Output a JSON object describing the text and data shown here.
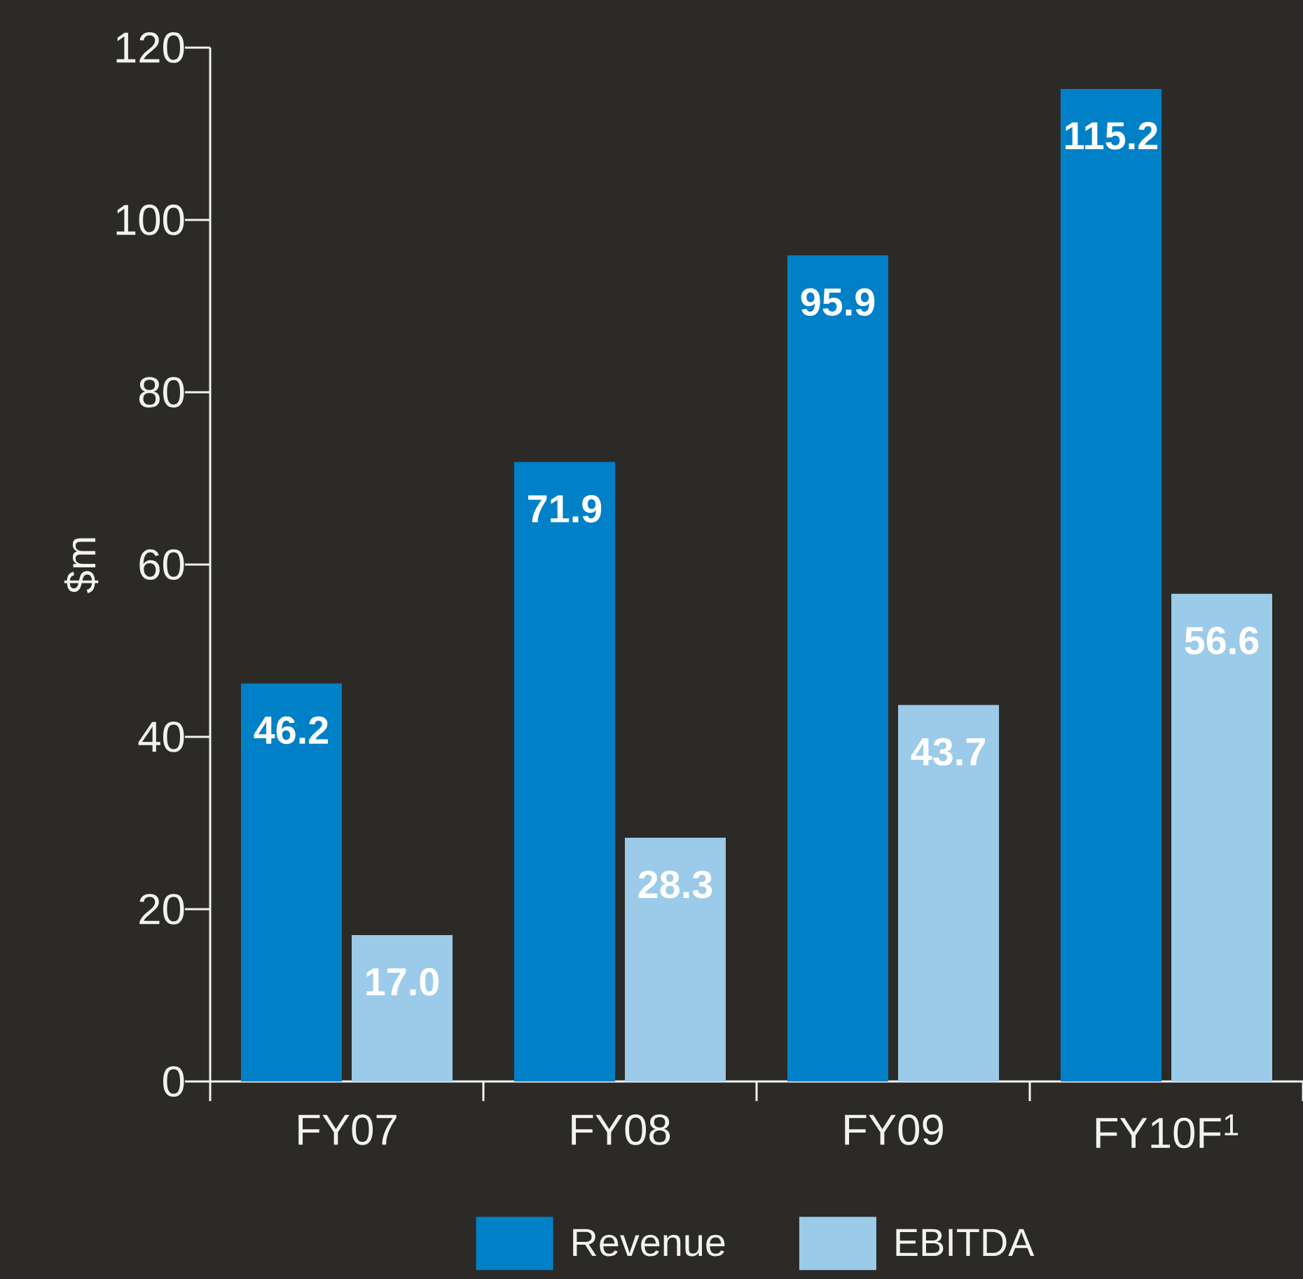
{
  "chart_data": {
    "type": "bar",
    "ylabel": "$m",
    "categories": [
      "FY07",
      "FY08",
      "FY09",
      "FY10F$^{1}$"
    ],
    "series": [
      {
        "name": "Revenue",
        "color": "#0080c6",
        "values": [
          46.2,
          71.9,
          95.9,
          115.2
        ],
        "value_labels": [
          "46.2",
          "71.9",
          "95.9",
          "115.2"
        ]
      },
      {
        "name": "EBITDA",
        "color": "#9bcbe8",
        "values": [
          17,
          28.3,
          43.7,
          56.6
        ],
        "value_labels": [
          "17.0",
          "28.3",
          "43.7",
          "56.6"
        ]
      }
    ],
    "ylim": [
      0,
      120
    ],
    "yticks": [
      0,
      20,
      40,
      60,
      80,
      100,
      120
    ],
    "legend": "bottom",
    "grid": false
  }
}
